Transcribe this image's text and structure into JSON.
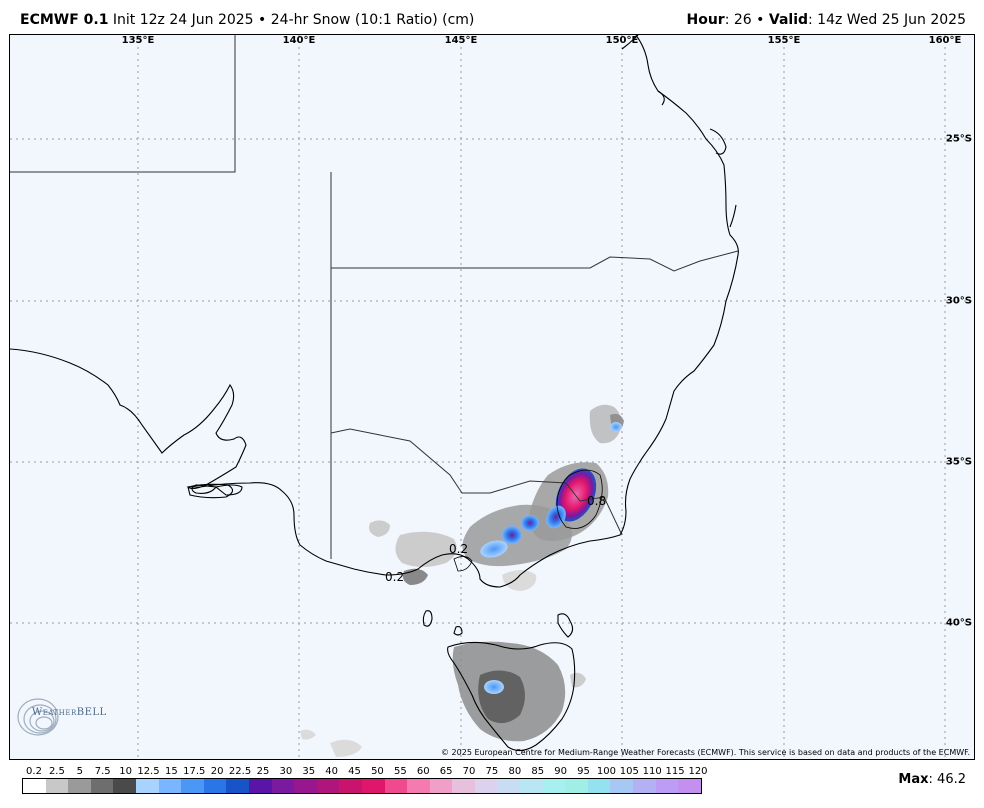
{
  "header": {
    "model": "ECMWF 0.1",
    "init": "Init 12z 24 Jun 2025",
    "product": "24-hr Snow (10:1 Ratio) (cm)",
    "hour_label": "Hour",
    "hour_value": ": 26",
    "valid_label": "Valid",
    "valid_value": ": 14z Wed 25 Jun 2025"
  },
  "map": {
    "lon_labels": [
      "135°E",
      "140°E",
      "145°E",
      "150°E",
      "155°E",
      "160°E"
    ],
    "lat_labels": [
      "25°S",
      "30°S",
      "35°S",
      "40°S"
    ],
    "contour_labels": [
      "0.8",
      "0.2",
      "0.2"
    ],
    "copyright": "© 2025 European Centre for Medium-Range Weather Forecasts (ECMWF). This service is based on data and products of the ECMWF.",
    "logo_text": "WeatherBELL"
  },
  "colorbar": {
    "ticks": [
      "0.2",
      "2.5",
      "5",
      "7.5",
      "10",
      "12.5",
      "15",
      "17.5",
      "20",
      "22.5",
      "25",
      "30",
      "35",
      "40",
      "45",
      "50",
      "55",
      "60",
      "65",
      "70",
      "75",
      "80",
      "85",
      "90",
      "95",
      "100",
      "105",
      "110",
      "115",
      "120"
    ],
    "colors": [
      "#ffffff",
      "#c8c8c8",
      "#9a9a9a",
      "#6e6e6e",
      "#4a4a4a",
      "#a9d3ff",
      "#7ab6ff",
      "#4c97f5",
      "#2a75e8",
      "#1953c8",
      "#5a14a8",
      "#7a1aa0",
      "#98168e",
      "#b0157c",
      "#c8146c",
      "#e0156c",
      "#f04a8e",
      "#f57aae",
      "#f0a0c8",
      "#e6c0dc",
      "#dcd2ee",
      "#c8dcf2",
      "#b8e6f2",
      "#a8f0f0",
      "#a0eee6",
      "#94e2f0",
      "#a8c8f4",
      "#b4b0f4",
      "#bc9cf4",
      "#c490f0"
    ]
  },
  "max": {
    "label": "Max",
    "value": ": 46.2"
  }
}
